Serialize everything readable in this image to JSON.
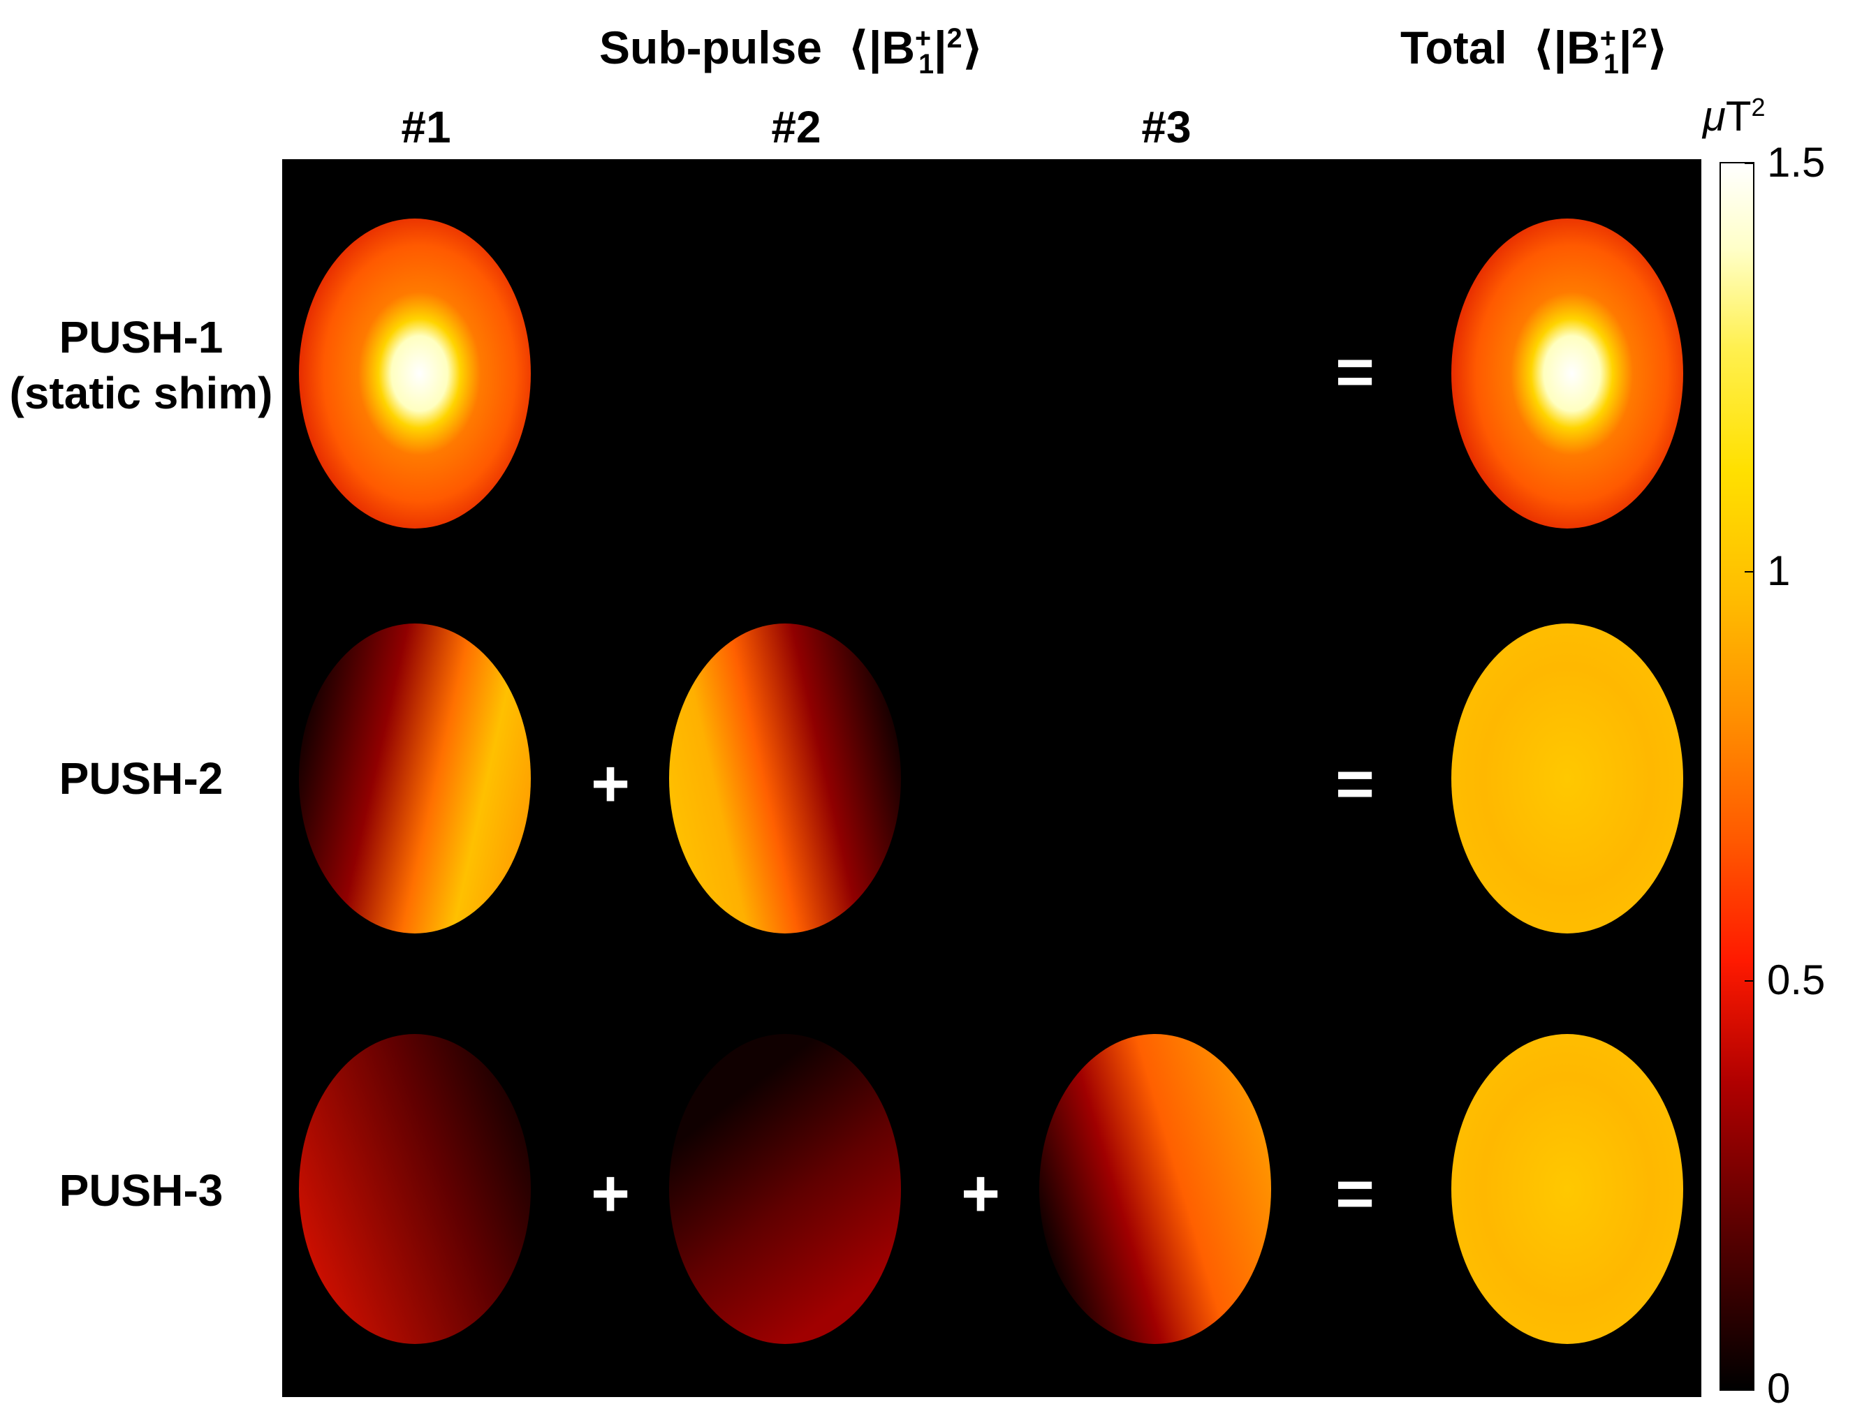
{
  "header": {
    "subpulse_label": "Sub-pulse",
    "total_label": "Total",
    "quantity": {
      "open": "⟨|B",
      "sup": "+",
      "sub": "1",
      "close_bar": "|",
      "power": "2",
      "end": "⟩"
    }
  },
  "columns": [
    "#1",
    "#2",
    "#3"
  ],
  "rows": [
    {
      "label_line1": "PUSH-1",
      "label_line2": "(static shim)",
      "ops": [
        "",
        "",
        "="
      ],
      "maps": [
        "push1-sub1",
        null,
        null,
        "push1-total"
      ]
    },
    {
      "label_line1": "PUSH-2",
      "label_line2": "",
      "ops": [
        "+",
        "",
        "="
      ],
      "maps": [
        "push2-sub1",
        "push2-sub2",
        null,
        "push2-total"
      ]
    },
    {
      "label_line1": "PUSH-3",
      "label_line2": "",
      "ops": [
        "+",
        "+",
        "="
      ],
      "maps": [
        "push3-sub1",
        "push3-sub2",
        "push3-sub3",
        "push3-total"
      ]
    }
  ],
  "colorbar": {
    "unit_mu": "μ",
    "unit_t": "T",
    "unit_power": "2",
    "ticks": [
      "1.5",
      "1",
      "0.5",
      "0"
    ],
    "tick_values": [
      1.5,
      1,
      0.5,
      0
    ],
    "range": [
      0,
      1.5
    ],
    "colormap": "hot"
  },
  "colors": {
    "background_panel": "#000000",
    "operator": "#ffffff"
  }
}
